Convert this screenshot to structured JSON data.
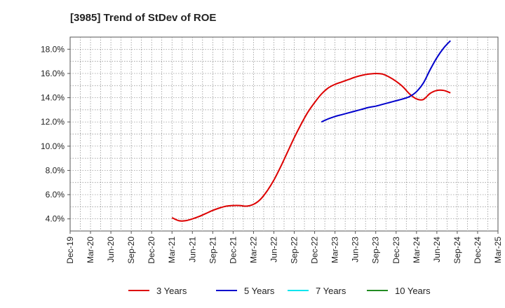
{
  "chart_data": {
    "type": "line",
    "title": "[3985]  Trend of StDev of ROE",
    "xlabel": "",
    "ylabel": "",
    "x_tick_labels": [
      "Dec-19",
      "Mar-20",
      "Jun-20",
      "Sep-20",
      "Dec-20",
      "Mar-21",
      "Jun-21",
      "Sep-21",
      "Dec-21",
      "Mar-22",
      "Jun-22",
      "Sep-22",
      "Dec-22",
      "Mar-23",
      "Jun-23",
      "Sep-23",
      "Dec-23",
      "Mar-24",
      "Jun-24",
      "Sep-24",
      "Dec-24",
      "Mar-25"
    ],
    "y_ticks": [
      4.0,
      6.0,
      8.0,
      10.0,
      12.0,
      14.0,
      16.0,
      18.0
    ],
    "y_tick_labels": [
      "4.0%",
      "6.0%",
      "8.0%",
      "10.0%",
      "12.0%",
      "14.0%",
      "16.0%",
      "18.0%"
    ],
    "ylim": [
      3.0,
      19.0
    ],
    "grid": true,
    "legend_position": "bottom",
    "series": [
      {
        "name": "3 Years",
        "color": "#dd0000",
        "points": [
          [
            "Mar-21",
            4.1
          ],
          [
            "Apr-21",
            3.85
          ],
          [
            "May-21",
            3.85
          ],
          [
            "Jun-21",
            4.0
          ],
          [
            "Jul-21",
            4.2
          ],
          [
            "Aug-21",
            4.45
          ],
          [
            "Sep-21",
            4.7
          ],
          [
            "Oct-21",
            4.9
          ],
          [
            "Nov-21",
            5.05
          ],
          [
            "Dec-21",
            5.1
          ],
          [
            "Jan-22",
            5.1
          ],
          [
            "Feb-22",
            5.05
          ],
          [
            "Mar-22",
            5.2
          ],
          [
            "Apr-22",
            5.6
          ],
          [
            "May-22",
            6.3
          ],
          [
            "Jun-22",
            7.2
          ],
          [
            "Jul-22",
            8.3
          ],
          [
            "Aug-22",
            9.5
          ],
          [
            "Sep-22",
            10.7
          ],
          [
            "Oct-22",
            11.8
          ],
          [
            "Nov-22",
            12.8
          ],
          [
            "Dec-22",
            13.6
          ],
          [
            "Jan-23",
            14.3
          ],
          [
            "Feb-23",
            14.8
          ],
          [
            "Mar-23",
            15.1
          ],
          [
            "Apr-23",
            15.3
          ],
          [
            "May-23",
            15.5
          ],
          [
            "Jun-23",
            15.7
          ],
          [
            "Jul-23",
            15.85
          ],
          [
            "Aug-23",
            15.95
          ],
          [
            "Sep-23",
            16.0
          ],
          [
            "Oct-23",
            15.95
          ],
          [
            "Nov-23",
            15.7
          ],
          [
            "Dec-23",
            15.35
          ],
          [
            "Jan-24",
            14.9
          ],
          [
            "Feb-24",
            14.3
          ],
          [
            "Mar-24",
            13.9
          ],
          [
            "Apr-24",
            13.85
          ],
          [
            "May-24",
            14.35
          ],
          [
            "Jun-24",
            14.6
          ],
          [
            "Jul-24",
            14.6
          ],
          [
            "Aug-24",
            14.4
          ]
        ]
      },
      {
        "name": "5 Years",
        "color": "#0000cc",
        "points": [
          [
            "Jan-23",
            12.0
          ],
          [
            "Feb-23",
            12.25
          ],
          [
            "Mar-23",
            12.45
          ],
          [
            "Apr-23",
            12.6
          ],
          [
            "May-23",
            12.75
          ],
          [
            "Jun-23",
            12.9
          ],
          [
            "Jul-23",
            13.05
          ],
          [
            "Aug-23",
            13.2
          ],
          [
            "Sep-23",
            13.3
          ],
          [
            "Oct-23",
            13.45
          ],
          [
            "Nov-23",
            13.6
          ],
          [
            "Dec-23",
            13.75
          ],
          [
            "Jan-24",
            13.9
          ],
          [
            "Feb-24",
            14.1
          ],
          [
            "Mar-24",
            14.5
          ],
          [
            "Apr-24",
            15.2
          ],
          [
            "May-24",
            16.3
          ],
          [
            "Jun-24",
            17.3
          ],
          [
            "Jul-24",
            18.1
          ],
          [
            "Aug-24",
            18.7
          ]
        ]
      },
      {
        "name": "7 Years",
        "color": "#00e5ee",
        "points": []
      },
      {
        "name": "10 Years",
        "color": "#228b22",
        "points": []
      }
    ]
  }
}
